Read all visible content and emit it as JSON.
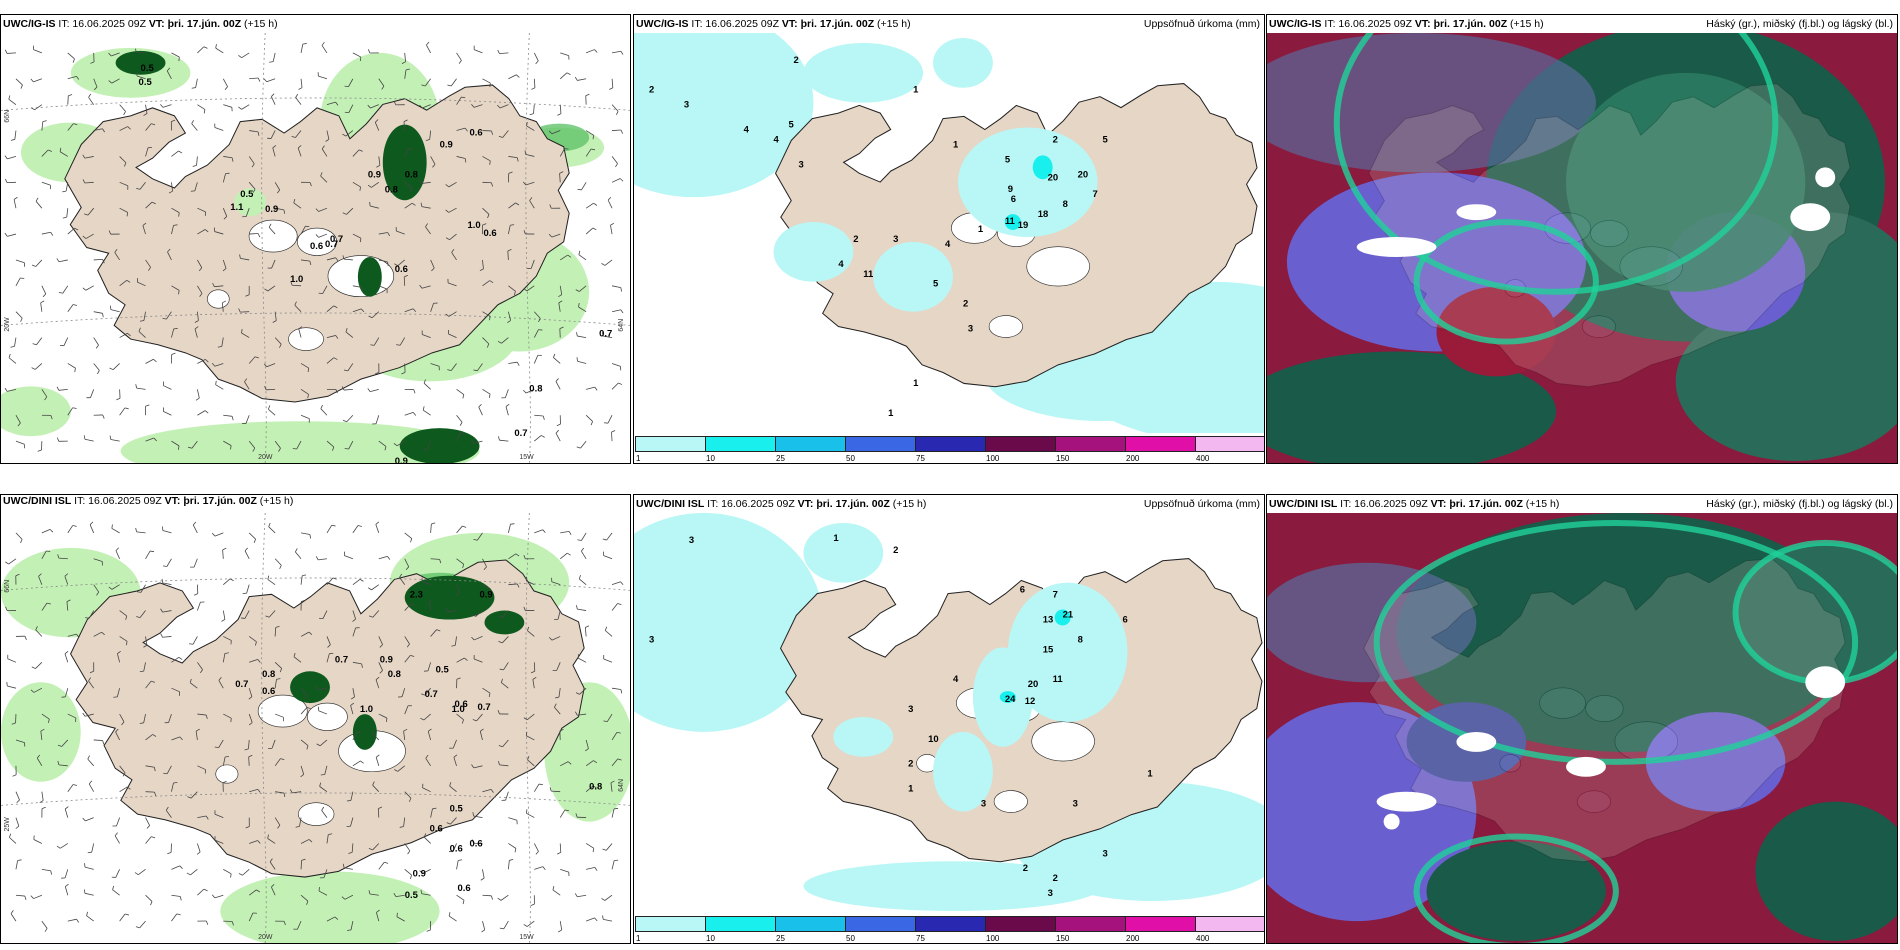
{
  "panels": {
    "p1": {
      "model": "UWC/IG-IS",
      "issue": "IT: 16.06.2025 09Z",
      "valid_label": "VT:",
      "valid": "þri. 17.jún. 00Z",
      "lead": "(+15 h)",
      "axis": {
        "lon_a": "20W",
        "lon_b": "15W",
        "lat_a": "66N",
        "lat_b": "64N",
        "lat_c": "20W"
      },
      "labels": [
        "0.5",
        "0.5",
        "1.1",
        "0.9",
        "0.7",
        "0.6",
        "1.0",
        "0.9",
        "0.8",
        "0.8",
        "0.9",
        "0.6",
        "1.0",
        "0.6",
        "0.6",
        "0.8",
        "0.7",
        "0.9",
        "0.5",
        "0.7",
        "0.7"
      ]
    },
    "p2": {
      "model": "UWC/IG-IS",
      "issue": "IT: 16.06.2025 09Z",
      "valid_label": "VT:",
      "valid": "þri. 17.jún. 00Z",
      "lead": "(+15 h)",
      "title_right": "Uppsöfnuð úrkoma (mm)",
      "labels": [
        "2",
        "3",
        "2",
        "4",
        "4",
        "5",
        "3",
        "1",
        "1",
        "20",
        "20",
        "19",
        "18",
        "9",
        "6",
        "11",
        "8",
        "7",
        "4",
        "3",
        "2",
        "4",
        "11",
        "5",
        "2",
        "3",
        "1",
        "1",
        "2",
        "5",
        "1",
        "2",
        "5"
      ]
    },
    "p3": {
      "model": "UWC/IG-IS",
      "issue": "IT: 16.06.2025 09Z",
      "valid_label": "VT:",
      "valid": "þri. 17.jún. 00Z",
      "lead": "(+15 h)",
      "title_right": "Háský (gr.), miðský (fj.bl.) og lágský (bl.)"
    },
    "p4": {
      "model": "UWC/DINI ISL",
      "issue": "IT: 16.06.2025 09Z",
      "valid_label": "VT:",
      "valid": "þri. 17.jún. 00Z",
      "lead": "(+15 h)",
      "axis": {
        "lon_a": "20W",
        "lon_b": "15W",
        "lat_a": "66N",
        "lat_b": "64N",
        "lat_c": "25W"
      },
      "labels": [
        "0.8",
        "0.7",
        "0.6",
        "0.7",
        "1.0",
        "0.9",
        "0.8",
        "0.5",
        "0.7",
        "0.6",
        "1.0",
        "0.7",
        "0.9",
        "0.5",
        "0.6",
        "0.6",
        "0.6",
        "0.9",
        "0.5",
        "0.6",
        "0.8",
        "2.3"
      ]
    },
    "p5": {
      "model": "UWC/DINI ISL",
      "issue": "IT: 16.06.2025 09Z",
      "valid_label": "VT:",
      "valid": "þri. 17.jún. 00Z",
      "lead": "(+15 h)",
      "title_right": "Uppsöfnuð úrkoma (mm)",
      "labels": [
        "3",
        "3",
        "1",
        "2",
        "6",
        "7",
        "21",
        "13",
        "15",
        "8",
        "6",
        "24",
        "12",
        "20",
        "11",
        "4",
        "3",
        "10",
        "2",
        "1",
        "3",
        "1",
        "3",
        "3",
        "2",
        "2",
        "3"
      ]
    },
    "p6": {
      "model": "UWC/DINI ISL",
      "issue": "IT: 16.06.2025 09Z",
      "valid_label": "VT:",
      "valid": "þri. 17.jún. 00Z",
      "lead": "(+15 h)",
      "title_right": "Háský (gr.), miðský (fj.bl.) og lágský (bl.)"
    }
  },
  "colorbar": {
    "ticks": [
      "1",
      "10",
      "25",
      "50",
      "75",
      "100",
      "150",
      "200",
      "400"
    ],
    "colors": [
      "#b8f7f5",
      "#19f0ee",
      "#18c0ea",
      "#3a67e3",
      "#2828b0",
      "#6a0a4a",
      "#a5127e",
      "#e00fa8",
      "#f4b8f0"
    ]
  },
  "colors": {
    "land": "#e6d6c6",
    "green_light": "#c3f0b4",
    "green_mid": "#62c36a",
    "green_dark": "#0e5a1e",
    "precip_light": "#b8f7f5",
    "cloud_high": "#1a5a48",
    "cloud_mid": "#6a5fcf",
    "cloud_low": "#8a1a3e"
  }
}
